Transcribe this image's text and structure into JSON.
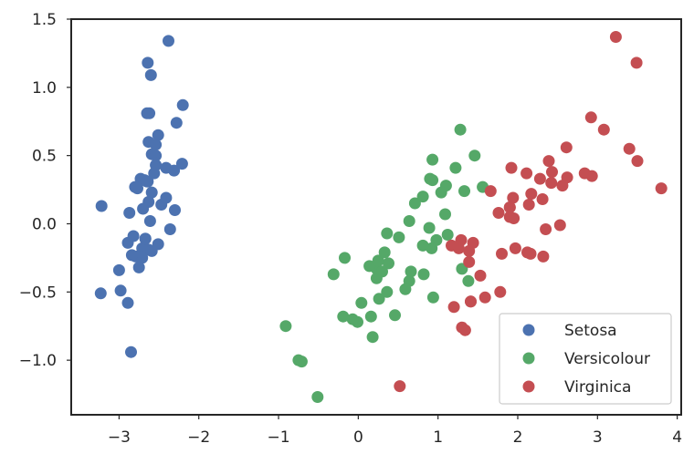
{
  "chart_data": {
    "type": "scatter",
    "title": "",
    "xlabel": "",
    "ylabel": "",
    "xlim": [
      -3.6,
      4.05
    ],
    "ylim": [
      -1.4,
      1.5
    ],
    "xticks": [
      -3,
      -2,
      -1,
      0,
      1,
      2,
      3,
      4
    ],
    "yticks": [
      -1.0,
      -0.5,
      0.0,
      0.5,
      1.0,
      1.5
    ],
    "xtick_labels": [
      "−3",
      "−2",
      "−1",
      "0",
      "1",
      "2",
      "3",
      "4"
    ],
    "ytick_labels": [
      "−1.0",
      "−0.5",
      "0.0",
      "0.5",
      "1.0",
      "1.5"
    ],
    "grid": false,
    "legend_position": "lower-right",
    "series": [
      {
        "name": "Setosa",
        "color": "#4c72b0",
        "points": [
          [
            -2.68,
            0.32
          ],
          [
            -2.71,
            -0.18
          ],
          [
            -2.89,
            -0.14
          ],
          [
            -2.75,
            -0.32
          ],
          [
            -2.73,
            0.33
          ],
          [
            -2.28,
            0.74
          ],
          [
            -2.82,
            -0.09
          ],
          [
            -2.63,
            0.16
          ],
          [
            -2.89,
            -0.58
          ],
          [
            -2.67,
            -0.11
          ],
          [
            -2.51,
            0.65
          ],
          [
            -2.61,
            0.02
          ],
          [
            -2.79,
            -0.24
          ],
          [
            -3.23,
            -0.51
          ],
          [
            -2.64,
            1.18
          ],
          [
            -2.38,
            1.34
          ],
          [
            -2.62,
            0.81
          ],
          [
            -2.65,
            0.31
          ],
          [
            -2.2,
            0.87
          ],
          [
            -2.59,
            0.51
          ],
          [
            -2.31,
            0.39
          ],
          [
            -2.54,
            0.43
          ],
          [
            -3.22,
            0.13
          ],
          [
            -2.3,
            0.1
          ],
          [
            -2.36,
            -0.04
          ],
          [
            -2.51,
            -0.15
          ],
          [
            -2.47,
            0.14
          ],
          [
            -2.56,
            0.37
          ],
          [
            -2.64,
            0.31
          ],
          [
            -2.63,
            -0.19
          ],
          [
            -2.59,
            -0.2
          ],
          [
            -2.41,
            0.41
          ],
          [
            -2.65,
            0.81
          ],
          [
            -2.6,
            1.09
          ],
          [
            -2.67,
            -0.11
          ],
          [
            -2.87,
            0.08
          ],
          [
            -2.63,
            0.6
          ],
          [
            -2.8,
            0.27
          ],
          [
            -2.98,
            -0.49
          ],
          [
            -2.59,
            0.23
          ],
          [
            -2.77,
            0.26
          ],
          [
            -2.85,
            -0.94
          ],
          [
            -3.0,
            -0.34
          ],
          [
            -2.41,
            0.19
          ],
          [
            -2.21,
            0.44
          ],
          [
            -2.71,
            -0.25
          ],
          [
            -2.54,
            0.5
          ],
          [
            -2.84,
            -0.23
          ],
          [
            -2.54,
            0.58
          ],
          [
            -2.7,
            0.11
          ]
        ]
      },
      {
        "name": "Versicolour",
        "color": "#55a868",
        "points": [
          [
            1.28,
            0.69
          ],
          [
            0.93,
            0.32
          ],
          [
            1.46,
            0.5
          ],
          [
            0.18,
            -0.83
          ],
          [
            1.09,
            0.07
          ],
          [
            0.64,
            -0.42
          ],
          [
            1.1,
            0.28
          ],
          [
            -0.75,
            -1.0
          ],
          [
            1.04,
            0.23
          ],
          [
            -0.01,
            -0.72
          ],
          [
            -0.51,
            -1.27
          ],
          [
            0.51,
            -0.1
          ],
          [
            0.26,
            -0.55
          ],
          [
            0.98,
            -0.12
          ],
          [
            -0.17,
            -0.25
          ],
          [
            0.93,
            0.47
          ],
          [
            0.66,
            -0.35
          ],
          [
            0.23,
            -0.33
          ],
          [
            0.94,
            -0.54
          ],
          [
            0.04,
            -0.58
          ],
          [
            1.12,
            -0.08
          ],
          [
            0.36,
            -0.07
          ],
          [
            1.3,
            -0.33
          ],
          [
            0.92,
            -0.18
          ],
          [
            0.71,
            0.15
          ],
          [
            0.9,
            0.33
          ],
          [
            1.33,
            0.24
          ],
          [
            1.56,
            0.27
          ],
          [
            0.81,
            -0.16
          ],
          [
            -0.31,
            -0.37
          ],
          [
            -0.07,
            -0.7
          ],
          [
            -0.19,
            -0.68
          ],
          [
            0.14,
            -0.31
          ],
          [
            1.38,
            -0.42
          ],
          [
            0.59,
            -0.48
          ],
          [
            0.81,
            0.2
          ],
          [
            1.22,
            0.41
          ],
          [
            0.82,
            -0.37
          ],
          [
            0.25,
            -0.27
          ],
          [
            0.16,
            -0.68
          ],
          [
            0.46,
            -0.67
          ],
          [
            0.89,
            -0.03
          ],
          [
            0.23,
            -0.4
          ],
          [
            -0.71,
            -1.01
          ],
          [
            0.36,
            -0.5
          ],
          [
            0.33,
            -0.21
          ],
          [
            0.38,
            -0.29
          ],
          [
            0.64,
            0.02
          ],
          [
            -0.91,
            -0.75
          ],
          [
            0.3,
            -0.35
          ]
        ]
      },
      {
        "name": "Virginica",
        "color": "#c44e52",
        "points": [
          [
            2.53,
            -0.01
          ],
          [
            1.41,
            -0.57
          ],
          [
            2.62,
            0.34
          ],
          [
            1.97,
            -0.18
          ],
          [
            2.35,
            -0.04
          ],
          [
            3.4,
            0.55
          ],
          [
            0.52,
            -1.19
          ],
          [
            2.93,
            0.35
          ],
          [
            2.32,
            -0.24
          ],
          [
            2.92,
            0.78
          ],
          [
            1.66,
            0.24
          ],
          [
            1.8,
            -0.22
          ],
          [
            2.17,
            0.22
          ],
          [
            1.34,
            -0.78
          ],
          [
            1.59,
            -0.54
          ],
          [
            1.9,
            0.12
          ],
          [
            1.95,
            0.04
          ],
          [
            3.49,
            1.18
          ],
          [
            3.8,
            0.26
          ],
          [
            1.3,
            -0.76
          ],
          [
            2.43,
            0.38
          ],
          [
            1.2,
            -0.61
          ],
          [
            3.5,
            0.46
          ],
          [
            1.39,
            -0.2
          ],
          [
            2.28,
            0.33
          ],
          [
            2.61,
            0.56
          ],
          [
            1.26,
            -0.18
          ],
          [
            1.29,
            -0.12
          ],
          [
            2.12,
            -0.21
          ],
          [
            2.39,
            0.46
          ],
          [
            2.84,
            0.37
          ],
          [
            3.23,
            1.37
          ],
          [
            2.16,
            -0.22
          ],
          [
            1.44,
            -0.14
          ],
          [
            1.78,
            -0.5
          ],
          [
            3.08,
            0.69
          ],
          [
            2.14,
            0.14
          ],
          [
            1.9,
            0.05
          ],
          [
            1.17,
            -0.16
          ],
          [
            2.11,
            0.37
          ],
          [
            2.31,
            0.18
          ],
          [
            1.92,
            0.41
          ],
          [
            1.41,
            -0.57
          ],
          [
            2.56,
            0.28
          ],
          [
            2.42,
            0.3
          ],
          [
            1.94,
            0.19
          ],
          [
            1.53,
            -0.38
          ],
          [
            1.76,
            0.08
          ],
          [
            1.9,
            0.12
          ],
          [
            1.39,
            -0.28
          ]
        ]
      }
    ]
  }
}
